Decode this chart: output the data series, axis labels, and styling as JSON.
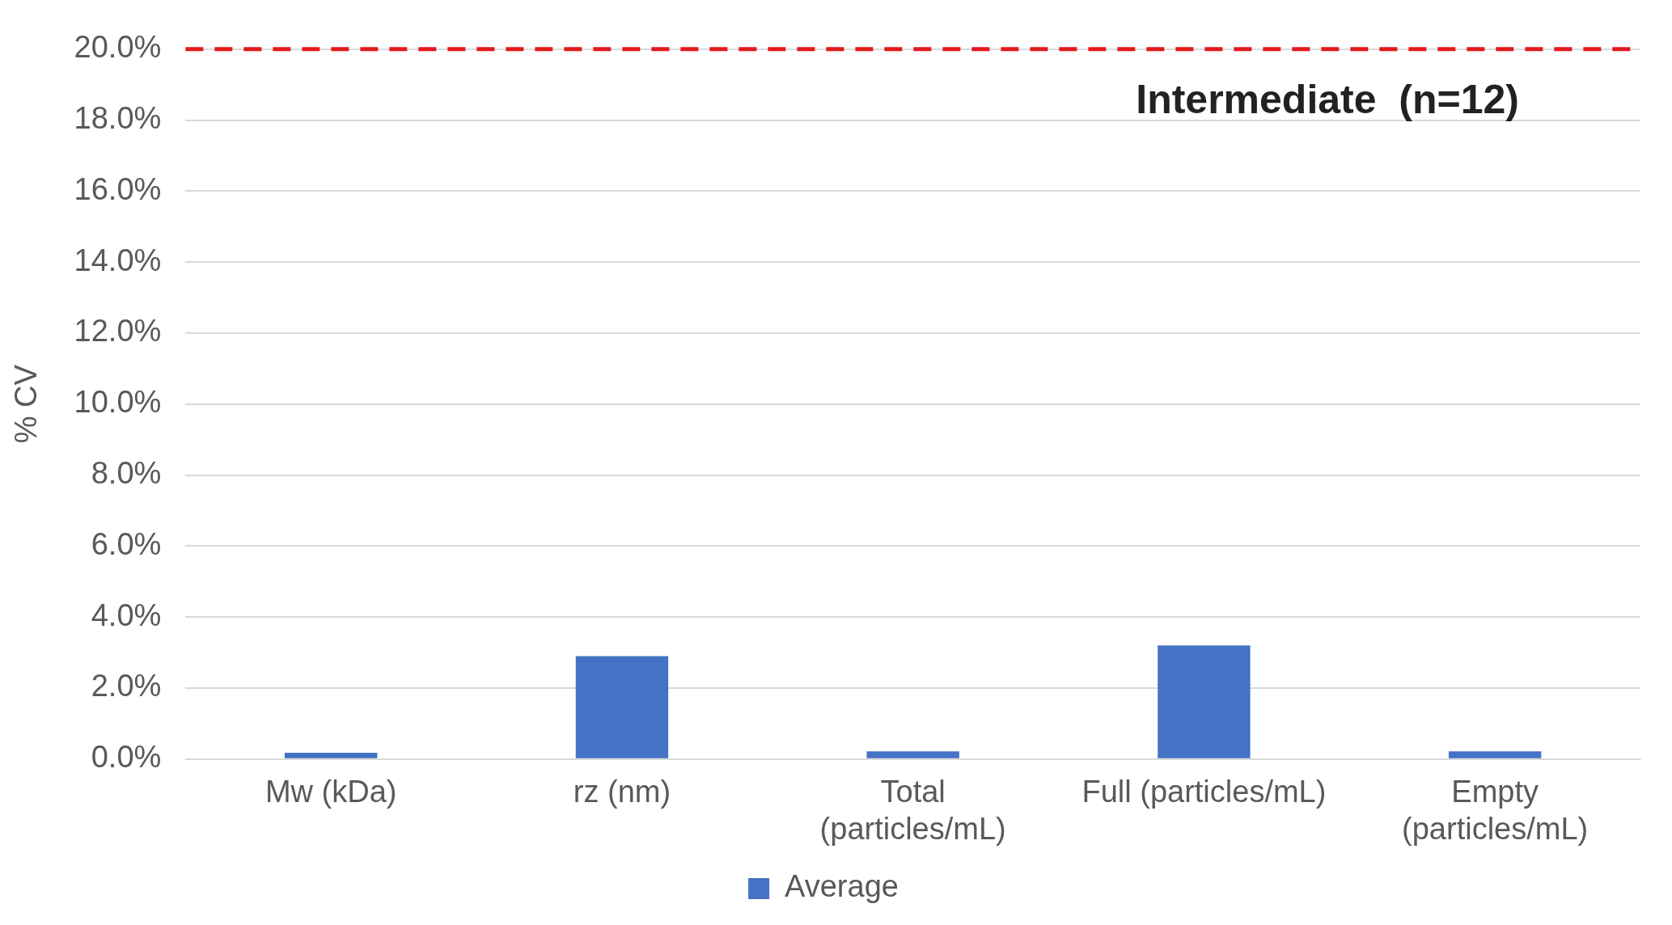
{
  "chart_data": {
    "type": "bar",
    "ylabel": "% CV",
    "categories": [
      "Mw (kDa)",
      "rz (nm)",
      "Total (particles/mL)",
      "Full (particles/mL)",
      "Empty (particles/mL)"
    ],
    "series": [
      {
        "name": "Average",
        "color": "#4472c4",
        "values": [
          0.18,
          2.9,
          0.22,
          3.2,
          0.22
        ]
      }
    ],
    "ylim": [
      0,
      20
    ],
    "yticks": [
      {
        "value": 0,
        "label": "0.0%"
      },
      {
        "value": 2,
        "label": "2.0%"
      },
      {
        "value": 4,
        "label": "4.0%"
      },
      {
        "value": 6,
        "label": "6.0%"
      },
      {
        "value": 8,
        "label": "8.0%"
      },
      {
        "value": 10,
        "label": "10.0%"
      },
      {
        "value": 12,
        "label": "12.0%"
      },
      {
        "value": 14,
        "label": "14.0%"
      },
      {
        "value": 16,
        "label": "16.0%"
      },
      {
        "value": 18,
        "label": "18.0%"
      },
      {
        "value": 20,
        "label": "20.0%"
      }
    ],
    "grid": "y",
    "legend": "bottom",
    "ref_lines": [
      {
        "axis": "y",
        "value": 20,
        "color": "#e31a1c",
        "line_style": "dashed"
      }
    ],
    "annotations": [
      "Intermediate  (n=12)"
    ]
  }
}
